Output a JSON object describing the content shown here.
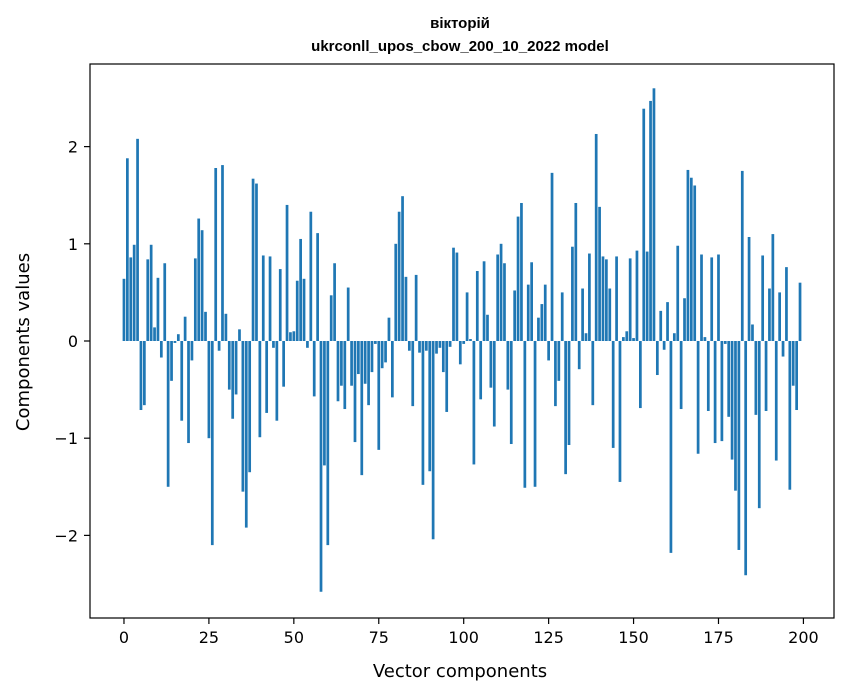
{
  "chart_data": {
    "type": "bar",
    "title": "вікторій",
    "subtitle": "ukrconll_upos_cbow_200_10_2022 model",
    "xlabel": "Vector components",
    "ylabel": "Components values",
    "xlim": [
      -10,
      209
    ],
    "ylim": [
      -2.85,
      2.85
    ],
    "xticks": [
      0,
      25,
      50,
      75,
      100,
      125,
      150,
      175,
      200
    ],
    "yticks": [
      -2,
      -1,
      0,
      1,
      2
    ],
    "xtick_labels": [
      "0",
      "25",
      "50",
      "75",
      "100",
      "125",
      "150",
      "175",
      "200"
    ],
    "ytick_labels": [
      "−2",
      "−1",
      "0",
      "1",
      "2"
    ],
    "grid": false,
    "bar_color": "#1f77b4",
    "x": [
      0,
      1,
      2,
      3,
      4,
      5,
      6,
      7,
      8,
      9,
      10,
      11,
      12,
      13,
      14,
      15,
      16,
      17,
      18,
      19,
      20,
      21,
      22,
      23,
      24,
      25,
      26,
      27,
      28,
      29,
      30,
      31,
      32,
      33,
      34,
      35,
      36,
      37,
      38,
      39,
      40,
      41,
      42,
      43,
      44,
      45,
      46,
      47,
      48,
      49,
      50,
      51,
      52,
      53,
      54,
      55,
      56,
      57,
      58,
      59,
      60,
      61,
      62,
      63,
      64,
      65,
      66,
      67,
      68,
      69,
      70,
      71,
      72,
      73,
      74,
      75,
      76,
      77,
      78,
      79,
      80,
      81,
      82,
      83,
      84,
      85,
      86,
      87,
      88,
      89,
      90,
      91,
      92,
      93,
      94,
      95,
      96,
      97,
      98,
      99,
      100,
      101,
      102,
      103,
      104,
      105,
      106,
      107,
      108,
      109,
      110,
      111,
      112,
      113,
      114,
      115,
      116,
      117,
      118,
      119,
      120,
      121,
      122,
      123,
      124,
      125,
      126,
      127,
      128,
      129,
      130,
      131,
      132,
      133,
      134,
      135,
      136,
      137,
      138,
      139,
      140,
      141,
      142,
      143,
      144,
      145,
      146,
      147,
      148,
      149,
      150,
      151,
      152,
      153,
      154,
      155,
      156,
      157,
      158,
      159,
      160,
      161,
      162,
      163,
      164,
      165,
      166,
      167,
      168,
      169,
      170,
      171,
      172,
      173,
      174,
      175,
      176,
      177,
      178,
      179,
      180,
      181,
      182,
      183,
      184,
      185,
      186,
      187,
      188,
      189,
      190,
      191,
      192,
      193,
      194,
      195,
      196,
      197,
      198,
      199
    ],
    "values": [
      0.64,
      1.88,
      0.86,
      0.99,
      2.08,
      -0.71,
      -0.66,
      0.84,
      0.99,
      0.14,
      0.65,
      -0.17,
      0.8,
      -1.5,
      -0.41,
      -0.02,
      0.07,
      -0.82,
      0.25,
      -1.05,
      -0.2,
      0.85,
      1.26,
      1.14,
      0.3,
      -1.0,
      -2.1,
      1.78,
      -0.1,
      1.81,
      0.28,
      -0.5,
      -0.8,
      -0.55,
      0.12,
      -1.55,
      -1.92,
      -1.35,
      1.67,
      1.62,
      -0.99,
      0.88,
      -0.74,
      0.87,
      -0.07,
      -0.82,
      0.74,
      -0.47,
      1.4,
      0.09,
      0.1,
      0.62,
      1.05,
      0.64,
      -0.07,
      1.33,
      -0.57,
      1.11,
      -2.58,
      -1.28,
      -2.1,
      0.47,
      0.8,
      -0.62,
      -0.46,
      -0.7,
      0.55,
      -0.46,
      -1.04,
      -0.34,
      -1.38,
      -0.44,
      -0.66,
      -0.32,
      -0.03,
      -1.12,
      -0.28,
      -0.22,
      0.24,
      -0.58,
      1.0,
      1.33,
      1.49,
      0.66,
      -0.1,
      -0.67,
      0.68,
      -0.12,
      -1.48,
      -0.1,
      -1.34,
      -2.04,
      -0.13,
      -0.07,
      -0.32,
      -0.73,
      -0.06,
      0.96,
      0.91,
      -0.24,
      -0.03,
      0.5,
      0.02,
      -1.27,
      0.72,
      -0.6,
      0.82,
      0.27,
      -0.48,
      -0.88,
      0.89,
      1.0,
      0.8,
      -0.5,
      -1.06,
      0.52,
      1.28,
      1.42,
      -1.51,
      0.58,
      0.81,
      -1.5,
      0.24,
      0.38,
      0.58,
      -0.2,
      1.73,
      -0.67,
      -0.41,
      0.5,
      -1.37,
      -1.07,
      0.97,
      1.42,
      -0.29,
      0.54,
      0.08,
      0.9,
      -0.66,
      2.13,
      1.38,
      0.87,
      0.84,
      0.54,
      -1.1,
      0.87,
      -1.45,
      0.04,
      0.1,
      0.85,
      0.03,
      0.93,
      -0.69,
      2.39,
      0.92,
      2.47,
      2.6,
      -0.35,
      0.31,
      -0.09,
      0.4,
      -2.18,
      0.08,
      0.98,
      -0.7,
      0.44,
      1.76,
      1.68,
      1.6,
      -1.16,
      0.89,
      0.04,
      -0.72,
      0.86,
      -1.05,
      0.89,
      -1.03,
      -0.03,
      -0.78,
      -1.22,
      -1.54,
      -2.15,
      1.75,
      -2.41,
      1.07,
      0.17,
      -0.76,
      -1.72,
      0.88,
      -0.72,
      0.54,
      1.1,
      -1.23,
      0.5,
      -0.16,
      0.76,
      -1.53,
      -0.46,
      -0.71,
      0.6
    ]
  }
}
